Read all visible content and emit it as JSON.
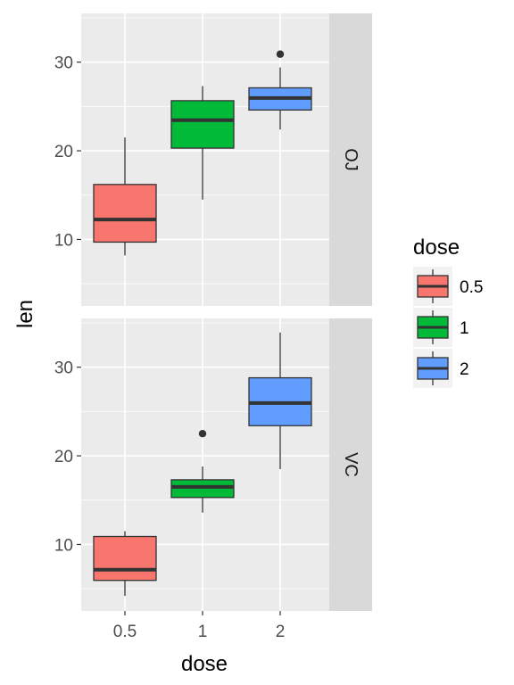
{
  "chart_data": {
    "type": "boxplot",
    "xlabel": "dose",
    "ylabel": "len",
    "categories": [
      "0.5",
      "1",
      "2"
    ],
    "ylim": [
      2.5,
      35.5
    ],
    "yticks": [
      10,
      20,
      30
    ],
    "grid": true,
    "legend": {
      "title": "dose",
      "position": "right",
      "entries": [
        {
          "label": "0.5",
          "color": "#F8766D"
        },
        {
          "label": "1",
          "color": "#00BA38"
        },
        {
          "label": "2",
          "color": "#619CFF"
        }
      ]
    },
    "facets": [
      {
        "label": "OJ",
        "boxes": [
          {
            "x": "0.5",
            "lower_whisker": 8.2,
            "q1": 9.7,
            "median": 12.25,
            "q3": 16.2,
            "upper_whisker": 21.5,
            "outliers": []
          },
          {
            "x": "1",
            "lower_whisker": 14.5,
            "q1": 20.3,
            "median": 23.45,
            "q3": 25.65,
            "upper_whisker": 27.3,
            "outliers": []
          },
          {
            "x": "2",
            "lower_whisker": 22.4,
            "q1": 24.6,
            "median": 25.95,
            "q3": 27.1,
            "upper_whisker": 29.4,
            "outliers": [
              30.9
            ]
          }
        ]
      },
      {
        "label": "VC",
        "boxes": [
          {
            "x": "0.5",
            "lower_whisker": 4.2,
            "q1": 5.95,
            "median": 7.15,
            "q3": 10.9,
            "upper_whisker": 11.5,
            "outliers": []
          },
          {
            "x": "1",
            "lower_whisker": 13.6,
            "q1": 15.3,
            "median": 16.5,
            "q3": 17.3,
            "upper_whisker": 18.8,
            "outliers": [
              22.5
            ]
          },
          {
            "x": "2",
            "lower_whisker": 18.5,
            "q1": 23.4,
            "median": 25.95,
            "q3": 28.8,
            "upper_whisker": 33.9,
            "outliers": []
          }
        ]
      }
    ]
  }
}
